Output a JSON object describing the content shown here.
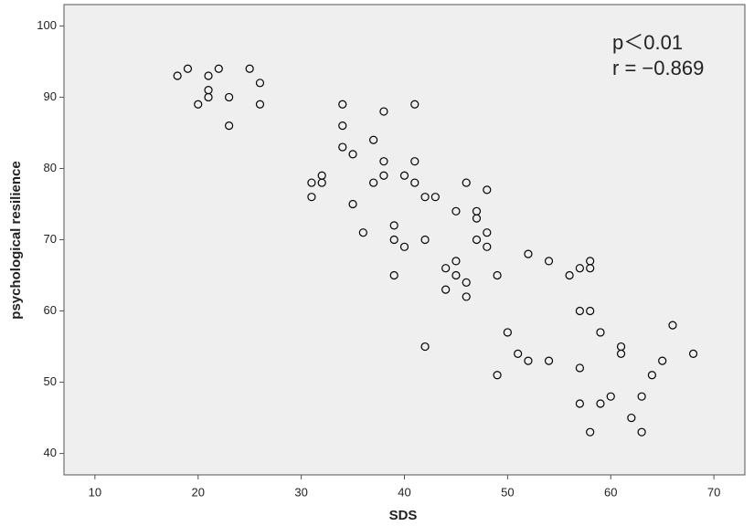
{
  "chart_data": {
    "type": "scatter",
    "xlabel": "SDS",
    "ylabel": "psychological resilience",
    "annotations": [
      "p＜0.01",
      "r = −0.869"
    ],
    "x": [
      18,
      19,
      22,
      21,
      21,
      21,
      20,
      23,
      25,
      26,
      26,
      23,
      34,
      41,
      38,
      34,
      37,
      34,
      35,
      38,
      41,
      38,
      40,
      32,
      31,
      32,
      37,
      41,
      46,
      48,
      31,
      42,
      43,
      35,
      45,
      47,
      47,
      39,
      36,
      48,
      39,
      42,
      47,
      40,
      48,
      52,
      54,
      45,
      58,
      44,
      57,
      58,
      56,
      39,
      45,
      49,
      46,
      44,
      46,
      57,
      58,
      50,
      59,
      66,
      42,
      61,
      51,
      61,
      68,
      52,
      54,
      65,
      57,
      49,
      64,
      60,
      63,
      57,
      59,
      62,
      58,
      63
    ],
    "values": [
      93,
      94,
      94,
      93,
      91,
      90,
      89,
      90,
      94,
      92,
      89,
      86,
      89,
      89,
      88,
      86,
      84,
      83,
      82,
      81,
      81,
      79,
      79,
      79,
      78,
      78,
      78,
      78,
      78,
      77,
      76,
      76,
      76,
      75,
      74,
      74,
      73,
      72,
      71,
      71,
      70,
      70,
      70,
      69,
      69,
      68,
      67,
      67,
      67,
      66,
      66,
      66,
      65,
      65,
      65,
      65,
      64,
      63,
      62,
      60,
      60,
      57,
      57,
      58,
      55,
      55,
      54,
      54,
      54,
      53,
      53,
      53,
      52,
      51,
      51,
      48,
      48,
      47,
      47,
      45,
      43,
      43
    ],
    "color": "#000000",
    "xlim": [
      7,
      73
    ],
    "ylim": [
      37,
      103
    ],
    "xticks": [
      10,
      20,
      30,
      40,
      50,
      60,
      70
    ],
    "yticks": [
      40,
      50,
      60,
      70,
      80,
      90,
      100
    ]
  }
}
